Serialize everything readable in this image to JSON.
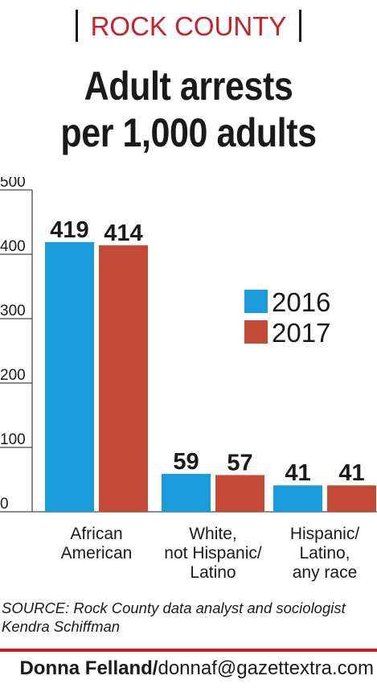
{
  "header": {
    "kicker": "ROCK COUNTY",
    "title_line1": "Adult arrests",
    "title_line2": "per 1,000 adults"
  },
  "chart_data": {
    "type": "bar",
    "title": "Adult arrests per 1,000 adults",
    "xlabel": "",
    "ylabel": "",
    "ylim": [
      0,
      500
    ],
    "yticks": [
      0,
      100,
      200,
      300,
      400,
      500
    ],
    "categories": [
      [
        "African",
        "American"
      ],
      [
        "White,",
        "not Hispanic/",
        "Latino"
      ],
      [
        "Hispanic/",
        "Latino,",
        "any race"
      ]
    ],
    "series": [
      {
        "name": "2016",
        "color": "#1a9bdc",
        "values": [
          419,
          59,
          41
        ]
      },
      {
        "name": "2017",
        "color": "#c24a37",
        "values": [
          414,
          57,
          41
        ]
      }
    ],
    "legend": "right",
    "grid": false
  },
  "footer": {
    "source": "SOURCE: Rock County data analyst and sociologist Kendra Schiffman",
    "credit_name": "Donna Felland/",
    "credit_email": "donnaf@gazettextra.com"
  }
}
